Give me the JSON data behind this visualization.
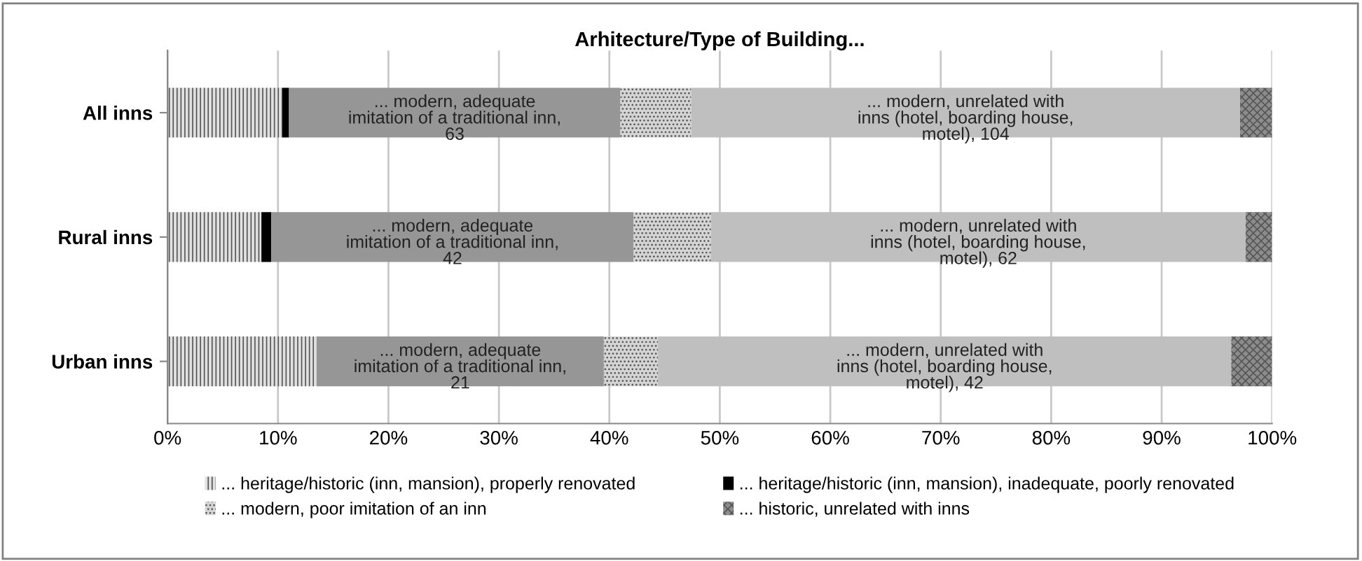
{
  "chart_data": {
    "type": "bar",
    "orientation": "horizontal",
    "stacked": true,
    "title": "Arhitecture/Type of Building...",
    "categories": [
      "All inns",
      "Rural inns",
      "Urban inns"
    ],
    "series": [
      {
        "name": "... heritage/historic (inn, mansion), properly renovated",
        "color": "#e0e0e0",
        "values": [
          10.4,
          8.5,
          13.5
        ]
      },
      {
        "name": "... heritage/historic (inn, mansion), inadequate, poorly renovated",
        "color": "#000000",
        "values": [
          0.6,
          0.9,
          0
        ]
      },
      {
        "color": "#969696",
        "values": [
          30.0,
          32.8,
          26.0
        ]
      },
      {
        "name": "... modern, poor imitation of an inn",
        "color": "#d4d4d4",
        "values": [
          6.4,
          7.0,
          4.9
        ]
      },
      {
        "color": "#bfbfbf",
        "values": [
          49.7,
          48.4,
          51.9
        ]
      },
      {
        "name": "... historic, unrelated with inns",
        "color": "#8c8c8c",
        "values": [
          2.9,
          2.4,
          3.7
        ]
      }
    ],
    "xlim": [
      0,
      100
    ],
    "xticks": [
      {
        "value": 0,
        "label": "0%"
      },
      {
        "value": 10,
        "label": "10%"
      },
      {
        "value": 20,
        "label": "20%"
      },
      {
        "value": 30,
        "label": "30%"
      },
      {
        "value": 40,
        "label": "40%"
      },
      {
        "value": 50,
        "label": "50%"
      },
      {
        "value": 60,
        "label": "60%"
      },
      {
        "value": 70,
        "label": "70%"
      },
      {
        "value": 80,
        "label": "80%"
      },
      {
        "value": 90,
        "label": "90%"
      },
      {
        "value": 100,
        "label": "100%"
      }
    ],
    "annotations": [
      "... modern, adequate\nimitation of a traditional inn,\n63",
      "... modern, adequate\nimitation of a traditional inn,\n42",
      "... modern, adequate\nimitation of a traditional inn,\n21",
      "... modern, unrelated with\ninns (hotel, boarding house,\nmotel), 104",
      "... modern, unrelated with\ninns (hotel, boarding house,\nmotel), 62",
      "... modern, unrelated with\ninns (hotel, boarding house,\nmotel), 42"
    ],
    "grid": "x",
    "legend": "bottom"
  }
}
